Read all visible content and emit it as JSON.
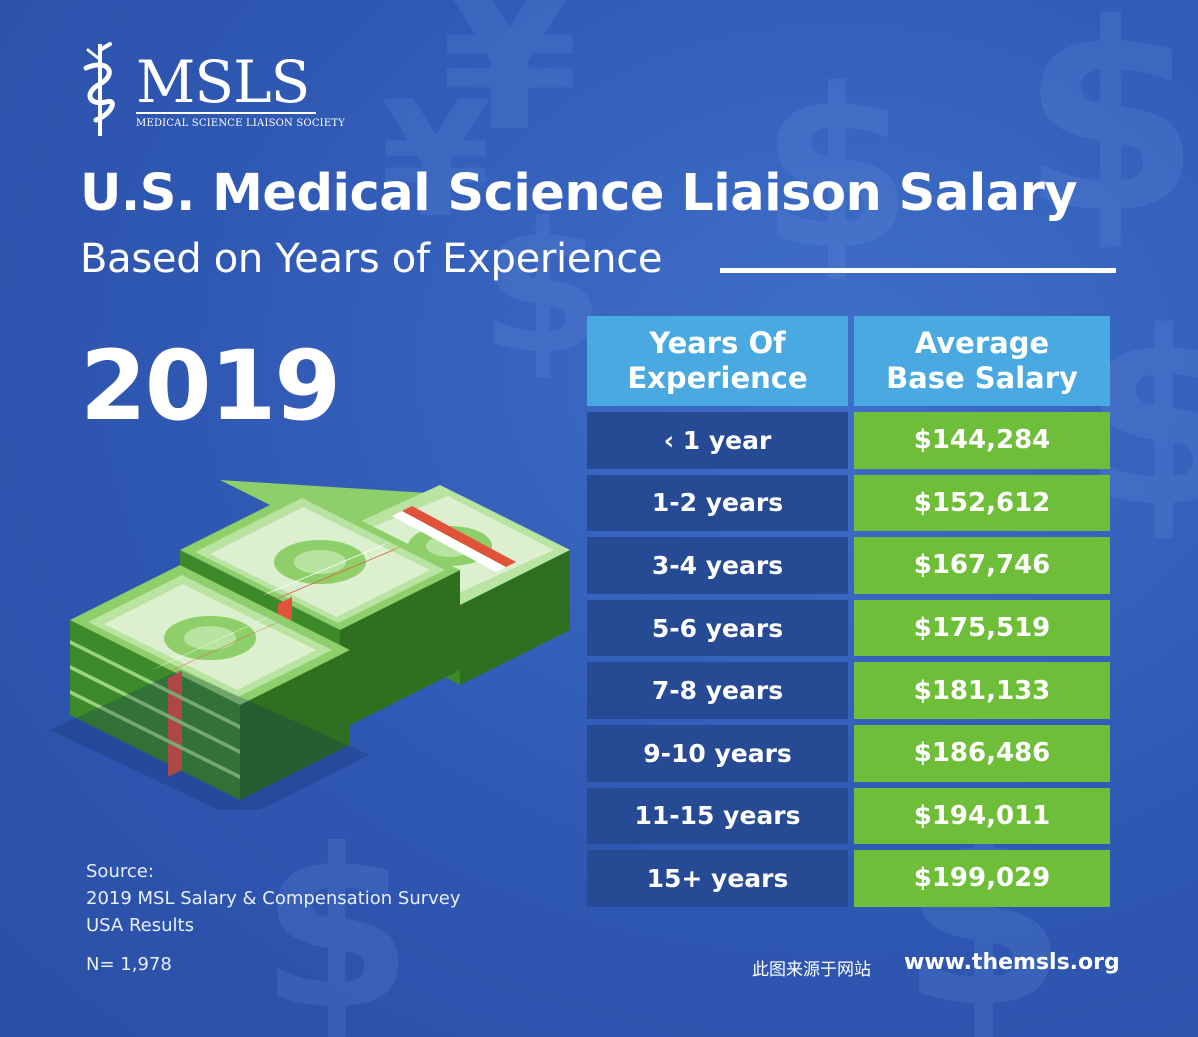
{
  "logo": {
    "name": "MSLS",
    "subtitle": "MEDICAL SCIENCE LIAISON SOCIETY"
  },
  "title": "U.S. Medical Science Liaison Salary",
  "subtitle": "Based on Years of Experience",
  "year": "2019",
  "colors": {
    "background": "#2f58b3",
    "header_cell": "#49a9e0",
    "experience_cell": "#274a94",
    "salary_cell": "#6fbe3a",
    "text": "#ffffff"
  },
  "chart_data": {
    "type": "table",
    "columns": [
      "Years Of Experience",
      "Average Base Salary"
    ],
    "header_lines": [
      [
        "Years Of",
        "Experience"
      ],
      [
        "Average",
        "Base Salary"
      ]
    ],
    "rows": [
      {
        "experience": "‹ 1 year",
        "salary": "$144,284"
      },
      {
        "experience": "1-2 years",
        "salary": "$152,612"
      },
      {
        "experience": "3-4 years",
        "salary": "$167,746"
      },
      {
        "experience": "5-6 years",
        "salary": "$175,519"
      },
      {
        "experience": "7-8 years",
        "salary": "$181,133"
      },
      {
        "experience": "9-10 years",
        "salary": "$186,486"
      },
      {
        "experience": "11-15 years",
        "salary": "$194,011"
      },
      {
        "experience": "15+ years",
        "salary": "$199,029"
      }
    ]
  },
  "source": {
    "label": "Source:",
    "line1": "2019 MSL Salary & Compensation Survey",
    "line2": "USA Results",
    "n": "N= 1,978"
  },
  "footer": {
    "watermark": "此图来源于网站",
    "url": "www.themsls.org"
  },
  "illustration": {
    "icon": "money-stacks-icon"
  }
}
